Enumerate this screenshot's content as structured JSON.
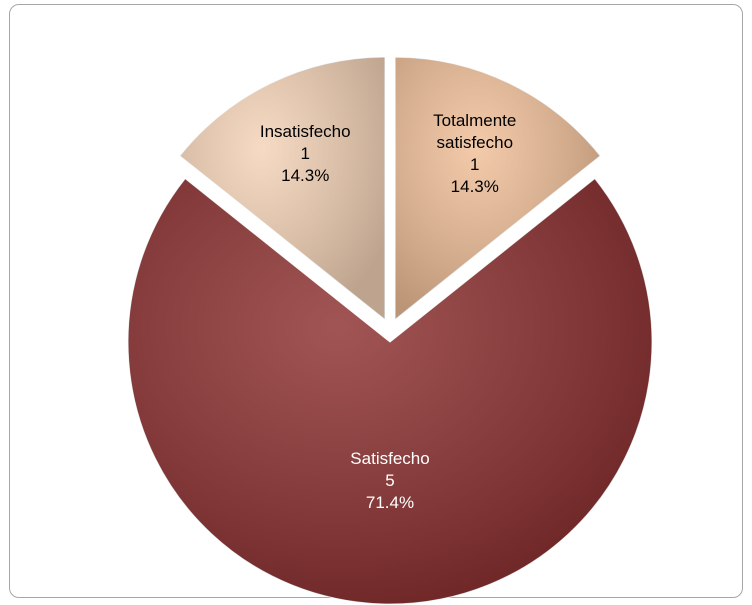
{
  "chart_data": {
    "type": "pie",
    "categories": [
      "Totalmente satisfecho",
      "Satisfecho",
      "Insatisfecho"
    ],
    "values": [
      1,
      5,
      1
    ],
    "percentages": [
      14.3,
      71.4,
      14.3
    ],
    "percentage_labels": [
      "14.3%",
      "71.4%",
      "14.3%"
    ],
    "colors": [
      "#f0bf98",
      "#8c2f2f",
      "#f4d2b6"
    ],
    "label_colors": [
      "#000000",
      "#ffffff",
      "#000000"
    ]
  }
}
